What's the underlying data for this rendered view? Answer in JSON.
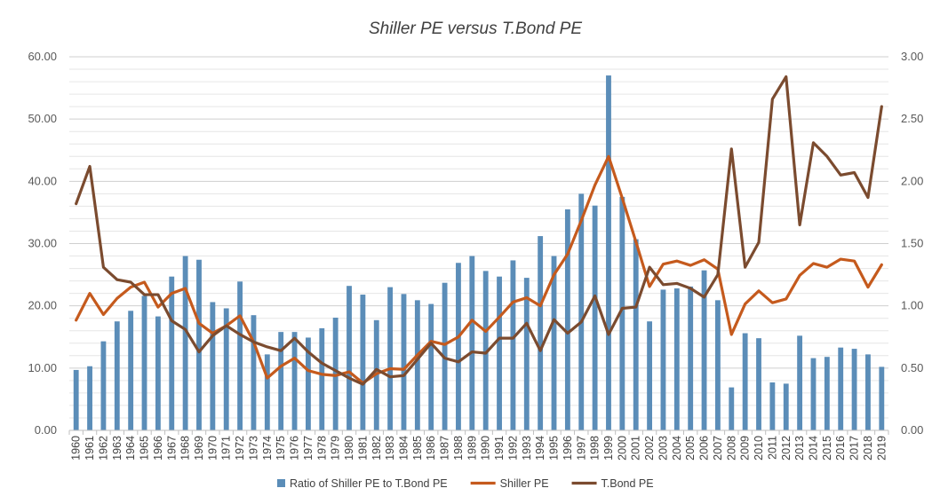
{
  "chart_data": {
    "type": "bar",
    "title": "Shiller PE versus T.Bond PE",
    "xlabel": "",
    "ylabel": "",
    "categories": [
      "1960",
      "1961",
      "1962",
      "1963",
      "1964",
      "1965",
      "1966",
      "1967",
      "1968",
      "1969",
      "1970",
      "1971",
      "1972",
      "1973",
      "1974",
      "1975",
      "1976",
      "1977",
      "1978",
      "1979",
      "1980",
      "1981",
      "1982",
      "1983",
      "1984",
      "1985",
      "1986",
      "1987",
      "1988",
      "1989",
      "1990",
      "1991",
      "1992",
      "1993",
      "1994",
      "1995",
      "1996",
      "1997",
      "1998",
      "1999",
      "2000",
      "2001",
      "2002",
      "2003",
      "2004",
      "2005",
      "2006",
      "2007",
      "2008",
      "2009",
      "2010",
      "2011",
      "2012",
      "2013",
      "2014",
      "2015",
      "2016",
      "2017",
      "2018",
      "2019"
    ],
    "ylim": [
      0,
      60
    ],
    "y2lim": [
      0,
      3
    ],
    "y_ticks": [
      "0.00",
      "10.00",
      "20.00",
      "30.00",
      "40.00",
      "50.00",
      "60.00"
    ],
    "y2_ticks": [
      "0.00",
      "0.50",
      "1.00",
      "1.50",
      "2.00",
      "2.50",
      "3.00"
    ],
    "grid": true,
    "legend_position": "bottom",
    "series": [
      {
        "name": "Ratio of Shiller PE to T.Bond PE",
        "kind": "bar",
        "axis": "left",
        "color": "#5b8db8",
        "values": [
          9.7,
          10.3,
          14.3,
          17.5,
          19.2,
          21.6,
          18.3,
          24.7,
          28.0,
          27.4,
          20.6,
          19.6,
          23.9,
          18.5,
          12.2,
          15.8,
          15.8,
          14.9,
          16.4,
          18.1,
          23.2,
          21.8,
          17.7,
          23.0,
          21.9,
          20.9,
          20.3,
          23.7,
          26.9,
          28.0,
          25.6,
          24.7,
          27.3,
          24.5,
          31.2,
          28.0,
          35.5,
          38.0,
          36.1,
          57.0,
          37.5,
          30.7,
          17.5,
          22.6,
          22.8,
          23.1,
          25.7,
          20.9,
          6.9,
          15.6,
          14.8,
          7.7,
          7.5,
          15.2,
          11.6,
          11.8,
          13.3,
          13.1,
          12.2,
          10.2
        ]
      },
      {
        "name": "Shiller PE",
        "kind": "line",
        "axis": "left",
        "color": "#c55a1d",
        "values": [
          17.7,
          22.0,
          18.6,
          21.2,
          23.0,
          23.8,
          19.8,
          22.0,
          22.8,
          17.2,
          15.6,
          16.8,
          18.4,
          14.2,
          8.4,
          10.3,
          11.6,
          9.6,
          9.0,
          8.8,
          9.4,
          7.6,
          9.1,
          9.9,
          9.8,
          12.1,
          14.3,
          13.8,
          15.0,
          17.7,
          15.9,
          18.2,
          20.6,
          21.3,
          20.0,
          25.0,
          28.3,
          33.7,
          39.4,
          44.0,
          37.3,
          30.3,
          23.1,
          26.7,
          27.2,
          26.5,
          27.4,
          25.9,
          15.4,
          20.3,
          22.4,
          20.5,
          21.1,
          24.9,
          26.8,
          26.2,
          27.5,
          27.2,
          23.0,
          26.6
        ]
      },
      {
        "name": "T.Bond PE",
        "kind": "line",
        "axis": "right",
        "color": "#7b4b2f",
        "values": [
          1.82,
          2.12,
          1.31,
          1.21,
          1.19,
          1.09,
          1.09,
          0.88,
          0.81,
          0.63,
          0.76,
          0.84,
          0.77,
          0.71,
          0.67,
          0.64,
          0.74,
          0.63,
          0.54,
          0.48,
          0.42,
          0.37,
          0.49,
          0.43,
          0.44,
          0.57,
          0.7,
          0.58,
          0.55,
          0.63,
          0.62,
          0.74,
          0.74,
          0.86,
          0.64,
          0.89,
          0.78,
          0.87,
          1.08,
          0.77,
          0.98,
          0.99,
          1.31,
          1.17,
          1.18,
          1.14,
          1.07,
          1.25,
          2.26,
          1.31,
          1.51,
          2.66,
          2.84,
          1.65,
          2.31,
          2.2,
          2.05,
          2.07,
          1.87,
          2.6
        ]
      }
    ]
  }
}
